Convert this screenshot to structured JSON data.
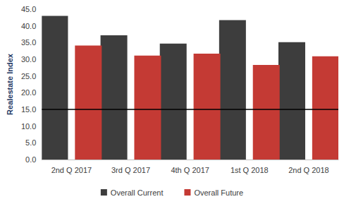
{
  "chart_data": {
    "type": "bar",
    "categories": [
      "2nd Q 2017",
      "3rd Q 2017",
      "4th Q 2017",
      "1st Q 2018",
      "2nd Q 2018"
    ],
    "series": [
      {
        "name": "Overall Current",
        "color": "#3d3d3d",
        "values": [
          43.0,
          37.2,
          34.7,
          41.7,
          35.1
        ]
      },
      {
        "name": "Overall Future",
        "color": "#c43a34",
        "values": [
          34.1,
          31.1,
          31.7,
          28.3,
          30.9
        ]
      }
    ],
    "y_label": "Realestate Index",
    "ylim": [
      0,
      45
    ],
    "yticks": [
      {
        "value": 0,
        "label": "0.0"
      },
      {
        "value": 5,
        "label": "5.0"
      },
      {
        "value": 10,
        "label": "10.0"
      },
      {
        "value": 15,
        "label": "15.0"
      },
      {
        "value": 20,
        "label": "20.0"
      },
      {
        "value": 25,
        "label": "25.0"
      },
      {
        "value": 30,
        "label": "30.0"
      },
      {
        "value": 35,
        "label": "35.0"
      },
      {
        "value": 40,
        "label": "40.0"
      },
      {
        "value": 45,
        "label": "45.0"
      }
    ],
    "reference_line": 15,
    "grid": false,
    "legend": "bottom"
  }
}
